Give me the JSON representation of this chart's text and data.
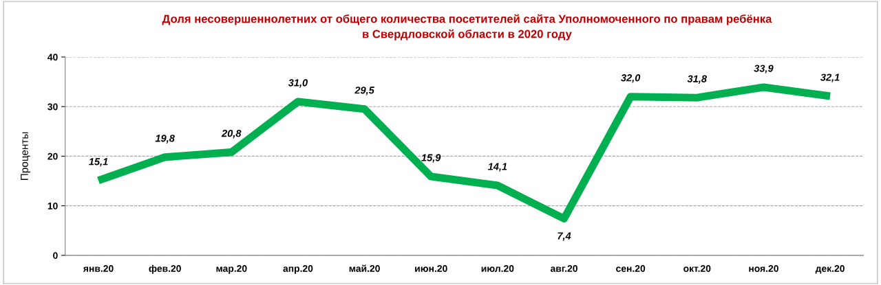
{
  "chart_data": {
    "type": "line",
    "title": "Доля несовершеннолетних от общего количества посетителей сайта Уполномоченного по правам ребёнка\nв Свердловской области в 2020 году",
    "ylabel": "Проценты",
    "categories": [
      "янв.20",
      "фев.20",
      "мар.20",
      "апр.20",
      "май.20",
      "июн.20",
      "июл.20",
      "авг.20",
      "сен.20",
      "окт.20",
      "ноя.20",
      "дек.20"
    ],
    "series": [
      {
        "color": "#00b050",
        "values": [
          15.1,
          19.8,
          20.8,
          31.0,
          29.5,
          15.9,
          14.1,
          7.4,
          32.0,
          31.8,
          33.9,
          32.1
        ],
        "value_labels": [
          "15,1",
          "19,8",
          "20,8",
          "31,0",
          "29,5",
          "15,9",
          "14,1",
          "7,4",
          "32,0",
          "31,8",
          "33,9",
          "32,1"
        ]
      }
    ],
    "ylim": [
      0,
      40
    ],
    "yticks": [
      0,
      10,
      20,
      30,
      40
    ],
    "grid": "y",
    "marker": "none",
    "line_style": "solid"
  }
}
